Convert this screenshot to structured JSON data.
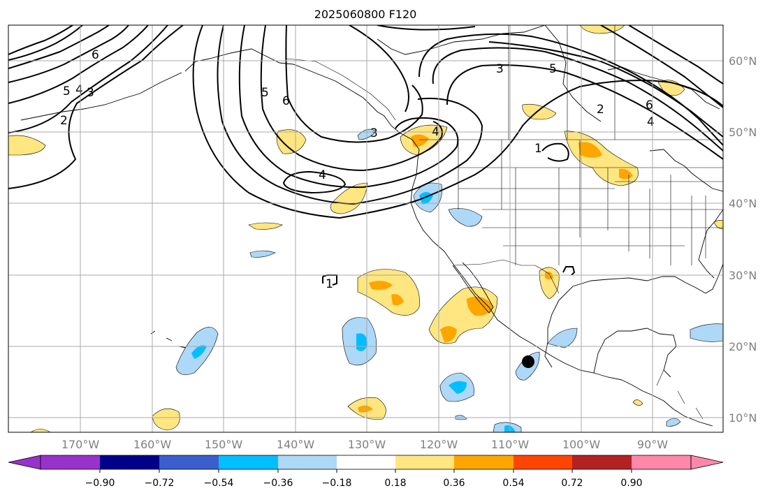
{
  "title": "2025060800 F120",
  "lon_labels": [
    "170°W",
    "160°W",
    "150°W",
    "140°W",
    "130°W",
    "120°W",
    "110°W",
    "100°W",
    "90°W"
  ],
  "lat_labels": [
    "60°N",
    "50°N",
    "40°N",
    "30°N",
    "20°N",
    "10°N"
  ],
  "contour_labels": [
    "6",
    "5",
    "4",
    "3",
    "2",
    "5",
    "6",
    "3",
    "4",
    "4",
    "3",
    "5",
    "2",
    "6",
    "4",
    "1",
    "1"
  ],
  "colorbar": {
    "tick_labels": [
      "−0.90",
      "−0.72",
      "−0.54",
      "−0.36",
      "−0.18",
      "0.18",
      "0.36",
      "0.54",
      "0.72",
      "0.90"
    ],
    "colors": [
      "#9932cc",
      "#00008b",
      "#3a5fcd",
      "#00bfff",
      "#add8f8",
      "#ffffff",
      "#ffe680",
      "#ffa500",
      "#ff4500",
      "#b22222",
      "#ff88aa"
    ]
  },
  "colors": {
    "pos_low": "#ffe680",
    "pos_mid": "#ffa500",
    "neg_low": "#add8f8",
    "neg_mid": "#00bfff",
    "grid": "#a8a8a8",
    "axis_text": "#808080"
  },
  "marker": "black-dot"
}
